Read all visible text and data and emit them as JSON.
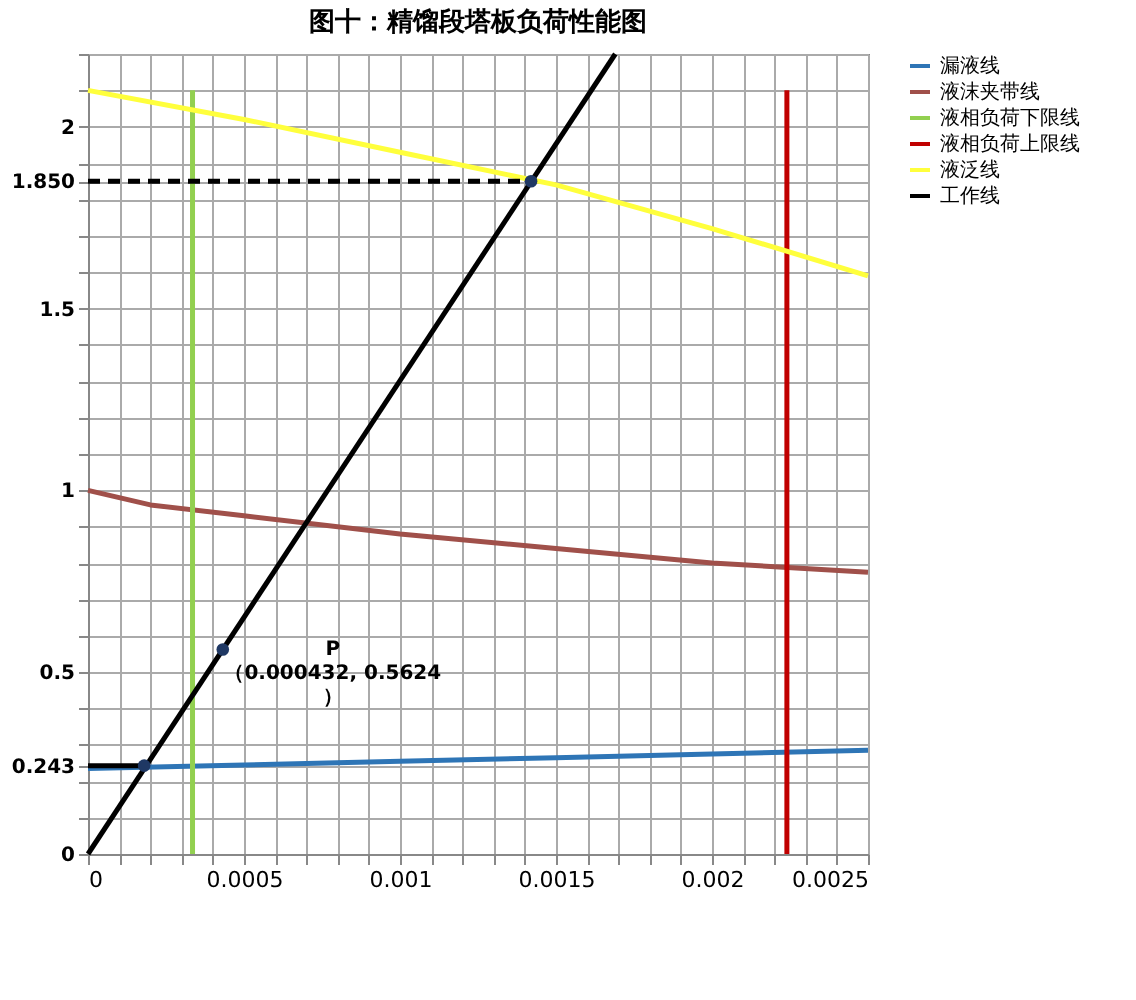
{
  "chart_data": {
    "type": "line",
    "title": "图十：精馏段塔板负荷性能图",
    "xlim": [
      0,
      0.0025
    ],
    "ylim": [
      0,
      2.2
    ],
    "xticks": [
      0,
      {
        "value": 0.0001,
        "label": null
      },
      {
        "value": 0.0002,
        "label": null
      },
      {
        "value": 0.0003,
        "label": null
      },
      {
        "value": 0.0004,
        "label": null
      },
      0.0005,
      {
        "value": 0.0006,
        "label": null
      },
      {
        "value": 0.0007,
        "label": null
      },
      {
        "value": 0.0008,
        "label": null
      },
      {
        "value": 0.0009,
        "label": null
      },
      0.001,
      {
        "value": 0.0011,
        "label": null
      },
      {
        "value": 0.0012,
        "label": null
      },
      {
        "value": 0.0013,
        "label": null
      },
      {
        "value": 0.0014,
        "label": null
      },
      0.0015,
      {
        "value": 0.0016,
        "label": null
      },
      {
        "value": 0.0017,
        "label": null
      },
      {
        "value": 0.0018,
        "label": null
      },
      {
        "value": 0.0019,
        "label": null
      },
      0.002,
      {
        "value": 0.0021,
        "label": null
      },
      {
        "value": 0.0022,
        "label": null
      },
      {
        "value": 0.0023,
        "label": null
      },
      {
        "value": 0.0024,
        "label": null
      },
      0.0025
    ],
    "yticks": [
      0,
      {
        "value": 0.1,
        "label": null
      },
      {
        "value": 0.2,
        "label": null
      },
      {
        "value": 0.243,
        "label": "0.243"
      },
      {
        "value": 0.3,
        "label": null
      },
      {
        "value": 0.4,
        "label": null
      },
      0.5,
      {
        "value": 0.6,
        "label": null
      },
      {
        "value": 0.7,
        "label": null
      },
      {
        "value": 0.8,
        "label": null
      },
      {
        "value": 0.9,
        "label": null
      },
      1,
      {
        "value": 1.1,
        "label": null
      },
      {
        "value": 1.2,
        "label": null
      },
      {
        "value": 1.3,
        "label": null
      },
      {
        "value": 1.4,
        "label": null
      },
      1.5,
      {
        "value": 1.6,
        "label": null
      },
      {
        "value": 1.7,
        "label": null
      },
      {
        "value": 1.8,
        "label": null
      },
      {
        "value": 1.85,
        "label": "1.850"
      },
      {
        "value": 1.9,
        "label": null
      },
      2,
      {
        "value": 2.1,
        "label": null
      },
      {
        "value": 2.2,
        "label": null
      }
    ],
    "grid": true,
    "legend": "right",
    "series": [
      {
        "name": "漏液线",
        "color": "#2e75b6",
        "x": [
          0,
          0.0005,
          0.001,
          0.0015,
          0.002,
          0.0025
        ],
        "values": [
          0.235,
          0.245,
          0.255,
          0.265,
          0.275,
          0.285
        ]
      },
      {
        "name": "液沫夹带线",
        "color": "#a0504a",
        "x": [
          0,
          0.0002,
          0.0005,
          0.001,
          0.0015,
          0.002,
          0.0025
        ],
        "values": [
          1.0,
          0.96,
          0.93,
          0.88,
          0.84,
          0.8,
          0.775
        ]
      },
      {
        "name": "液相负荷下限线",
        "color": "#92d050",
        "x": [
          0.000335,
          0.000335
        ],
        "values": [
          0,
          2.1
        ]
      },
      {
        "name": "液相负荷上限线",
        "color": "#c00000",
        "x": [
          0.00224,
          0.00224
        ],
        "values": [
          0,
          2.1
        ]
      },
      {
        "name": "液泛线",
        "color": "#ffff3c",
        "x": [
          0,
          0.0005,
          0.001,
          0.0015,
          0.002,
          0.0025
        ],
        "values": [
          2.1,
          2.02,
          1.93,
          1.84,
          1.72,
          1.59
        ]
      },
      {
        "name": "工作线",
        "color": "#000000",
        "x": [
          0,
          0.00169
        ],
        "values": [
          0,
          2.2
        ]
      },
      {
        "color": "#000000",
        "line_style": "dashed",
        "x": [
          0,
          0.00142
        ],
        "values": [
          1.85,
          1.85
        ]
      },
      {
        "color": "#000000",
        "x": [
          0,
          0.00018
        ],
        "values": [
          0.243,
          0.243
        ]
      },
      {
        "type": "scatter",
        "marker": "circle",
        "color": "#1f3864",
        "x": [
          0.00018,
          0.000432,
          0.00142
        ],
        "values": [
          0.243,
          0.5624,
          1.85
        ]
      }
    ],
    "annotations": [
      {
        "text": "P\n（0.000432, 0.5624\n）",
        "x": 0.000432,
        "y": 0.5624
      }
    ]
  }
}
